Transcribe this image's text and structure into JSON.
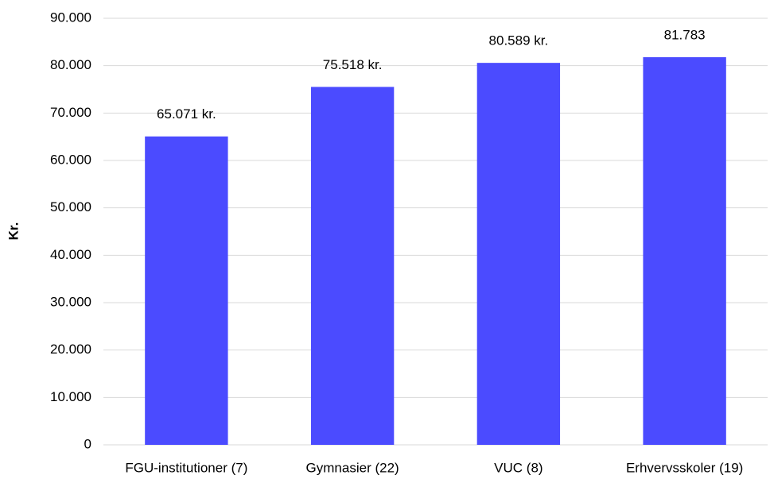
{
  "chart_data": {
    "type": "bar",
    "y_label": "Kr.",
    "categories": [
      "FGU-institutioner (7)",
      "Gymnasier (22)",
      "VUC (8)",
      "Erhvervsskoler (19)"
    ],
    "values": [
      65071,
      75518,
      80589,
      81783
    ],
    "value_labels": [
      "65.071 kr.",
      "75.518 kr.",
      "80.589 kr.",
      "81.783"
    ],
    "color": "#4b4bff",
    "ylim": [
      0,
      90000
    ],
    "yticks": [
      0,
      {
        "value": 10000,
        "label": "10.000"
      },
      {
        "value": 20000,
        "label": "20.000"
      },
      {
        "value": 30000,
        "label": "30.000"
      },
      {
        "value": 40000,
        "label": "40.000"
      },
      {
        "value": 50000,
        "label": "50.000"
      },
      {
        "value": 60000,
        "label": "60.000"
      },
      {
        "value": 70000,
        "label": "70.000"
      },
      {
        "value": 80000,
        "label": "80.000"
      },
      {
        "value": 90000,
        "label": "90.000"
      }
    ],
    "grid": true
  }
}
